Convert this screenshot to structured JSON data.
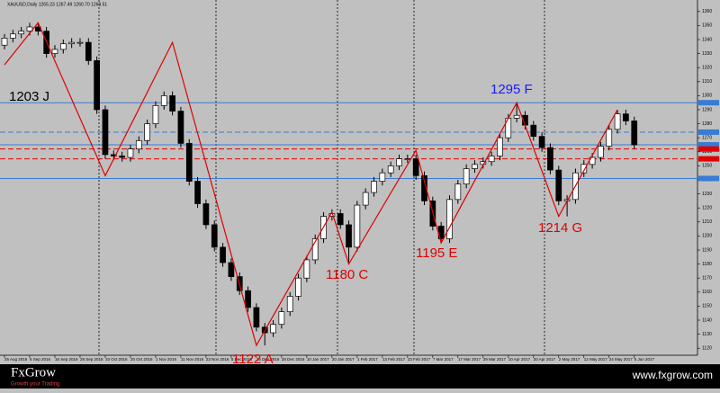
{
  "chart_data": {
    "type": "candlestick",
    "title": "XAUUSD,Daily 1265.23 1267.49 1260.70 1263.51",
    "categories": [
      "25 Aug 2016",
      null,
      null,
      "6 Sep 2016",
      null,
      null,
      "16 Sep 2016",
      null,
      null,
      "28 Sep 2016",
      null,
      null,
      "10 Oct 2016",
      null,
      null,
      "20 Oct 2016",
      null,
      null,
      "1 Nov 2016",
      null,
      null,
      "11 Nov 2016",
      null,
      null,
      "23 Nov 2016",
      null,
      null,
      "5 Dec 2016",
      null,
      null,
      "15 Dec 2016",
      null,
      null,
      "28 Dec 2016",
      null,
      null,
      "10 Jan 2017",
      null,
      null,
      "20 Jan 2017",
      null,
      null,
      "1 Feb 2017",
      null,
      null,
      "13 Feb 2017",
      null,
      null,
      "23 Feb 2017",
      null,
      null,
      "7 Mar 2017",
      null,
      null,
      "17 Mar 2017",
      null,
      null,
      "29 Mar 2017",
      null,
      null,
      "10 Apr 2017",
      null,
      null,
      "20 Apr 2017",
      null,
      null,
      "2 May 2017",
      null,
      null,
      "12 May 2017",
      null,
      null,
      "24 May 2017",
      null,
      null,
      "5 Jun 2017"
    ],
    "open": [
      1336,
      1341,
      1344,
      1346,
      1349,
      1346,
      1330,
      1333,
      1337,
      1338,
      1338,
      1325,
      1290,
      1258,
      1257,
      1256,
      1262,
      1268,
      1280,
      1293,
      1300,
      1289,
      1266,
      1239,
      1223,
      1208,
      1192,
      1181,
      1171,
      1161,
      1149,
      1135,
      1131,
      1137,
      1146,
      1157,
      1170,
      1183,
      1198,
      1214,
      1216,
      1208,
      1192,
      1222,
      1231,
      1239,
      1245,
      1250,
      1255,
      1255,
      1243,
      1225,
      1207,
      1198,
      1226,
      1237,
      1248,
      1251,
      1253,
      1257,
      1270,
      1284,
      1286,
      1279,
      1271,
      1263,
      1247,
      1225,
      1226,
      1245,
      1251,
      1256,
      1264,
      1276,
      1287,
      1282
    ],
    "high": [
      1344,
      1347,
      1349,
      1352,
      1352,
      1349,
      1336,
      1340,
      1341,
      1341,
      1341,
      1328,
      1293,
      1261,
      1260,
      1265,
      1271,
      1283,
      1296,
      1303,
      1303,
      1292,
      1269,
      1242,
      1226,
      1211,
      1195,
      1184,
      1174,
      1164,
      1152,
      1138,
      1140,
      1149,
      1160,
      1173,
      1186,
      1201,
      1217,
      1219,
      1219,
      1211,
      1225,
      1234,
      1242,
      1248,
      1253,
      1258,
      1258,
      1258,
      1246,
      1228,
      1210,
      1229,
      1240,
      1251,
      1254,
      1256,
      1260,
      1273,
      1287,
      1295,
      1289,
      1282,
      1274,
      1266,
      1250,
      1229,
      1248,
      1254,
      1259,
      1267,
      1279,
      1290,
      1290,
      1285
    ],
    "low": [
      1333,
      1338,
      1341,
      1343,
      1343,
      1327,
      1327,
      1330,
      1334,
      1335,
      1322,
      1287,
      1255,
      1254,
      1253,
      1253,
      1259,
      1265,
      1277,
      1290,
      1286,
      1263,
      1236,
      1220,
      1205,
      1189,
      1178,
      1168,
      1158,
      1146,
      1132,
      1122,
      1128,
      1134,
      1143,
      1154,
      1167,
      1180,
      1195,
      1211,
      1205,
      1180,
      1189,
      1219,
      1228,
      1236,
      1242,
      1247,
      1252,
      1240,
      1222,
      1204,
      1195,
      1195,
      1223,
      1234,
      1245,
      1248,
      1250,
      1254,
      1267,
      1281,
      1276,
      1268,
      1260,
      1244,
      1222,
      1214,
      1223,
      1242,
      1248,
      1253,
      1261,
      1273,
      1279,
      1262
    ],
    "close": [
      1341,
      1344,
      1346,
      1349,
      1346,
      1330,
      1333,
      1337,
      1338,
      1338,
      1325,
      1290,
      1258,
      1257,
      1256,
      1262,
      1268,
      1280,
      1293,
      1300,
      1289,
      1266,
      1239,
      1223,
      1208,
      1192,
      1181,
      1171,
      1161,
      1149,
      1135,
      1131,
      1137,
      1146,
      1157,
      1170,
      1183,
      1198,
      1214,
      1216,
      1208,
      1192,
      1222,
      1231,
      1239,
      1245,
      1250,
      1255,
      1255,
      1243,
      1225,
      1207,
      1198,
      1226,
      1237,
      1248,
      1251,
      1253,
      1257,
      1270,
      1284,
      1286,
      1279,
      1271,
      1263,
      1247,
      1225,
      1226,
      1245,
      1251,
      1256,
      1264,
      1276,
      1287,
      1282,
      1265
    ],
    "up_color": "#ffffff",
    "down_color": "#000000",
    "ylim": [
      1115,
      1365
    ],
    "yticks": [
      1120,
      1130,
      1140,
      1150,
      1160,
      1170,
      1180,
      1190,
      1200,
      1210,
      1220,
      1230,
      1240,
      1250,
      1260,
      1270,
      1280,
      1290,
      1300,
      1310,
      1320,
      1330,
      1340,
      1350,
      1360
    ],
    "zigzag": {
      "color": "#e00000",
      "x": [
        0,
        4,
        12,
        20,
        30,
        39,
        41,
        49,
        52,
        61,
        66,
        73
      ],
      "y": [
        1322,
        1352,
        1243,
        1338,
        1122,
        1217,
        1180,
        1261,
        1195,
        1295,
        1214,
        1290
      ]
    },
    "levels": [
      {
        "value": 1295,
        "color": "#3a7bd5",
        "style": "solid"
      },
      {
        "value": 1274,
        "color": "#3a7bd5",
        "style": "dashed"
      },
      {
        "value": 1265,
        "color": "#3a7bd5",
        "style": "solid"
      },
      {
        "value": 1262,
        "color": "#e00000",
        "style": "dashed"
      },
      {
        "value": 1255,
        "color": "#e00000",
        "style": "dashed"
      },
      {
        "value": 1241,
        "color": "#3a7bd5",
        "style": "solid"
      }
    ],
    "annotations": [
      {
        "text": "1203 J",
        "color": "#000000"
      },
      {
        "text": "1295 F",
        "color": "#1a1aff"
      },
      {
        "text": "1180 C",
        "color": "#e00000"
      },
      {
        "text": "1195 E",
        "color": "#e00000"
      },
      {
        "text": "1214 G",
        "color": "#e00000"
      },
      {
        "text": "1122 A",
        "color": "#e00000"
      }
    ]
  },
  "footer": {
    "brand": "FxGrow",
    "tagline": "Growth your Trading",
    "url": "www.fxgrow.com"
  }
}
